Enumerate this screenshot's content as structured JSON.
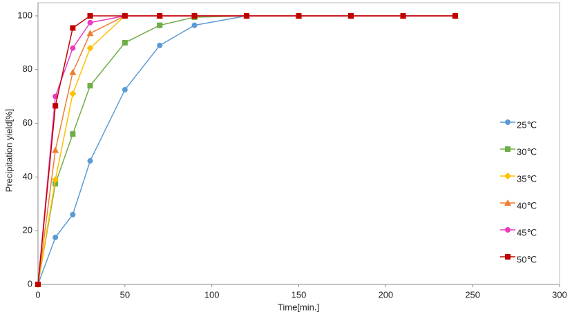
{
  "chart_data": {
    "type": "line",
    "xlabel": "Time[min.]",
    "ylabel": "Precipitation yield[%]",
    "x": [
      0,
      10,
      20,
      30,
      50,
      70,
      90,
      120,
      150,
      180,
      210,
      240
    ],
    "series": [
      {
        "name": "25℃",
        "color": "#5b9bd5",
        "marker": "circle",
        "values": [
          0,
          17.5,
          26,
          46,
          72.5,
          89,
          96.5,
          100,
          100,
          100,
          100,
          100
        ]
      },
      {
        "name": "30℃",
        "color": "#70ad47",
        "marker": "square",
        "values": [
          0,
          37.5,
          56,
          74,
          90,
          96.5,
          99.5,
          100,
          100,
          100,
          100,
          100
        ]
      },
      {
        "name": "35℃",
        "color": "#ffc000",
        "marker": "diamond",
        "values": [
          0,
          39,
          71,
          88,
          100,
          100,
          100,
          100,
          100,
          100,
          100,
          100
        ]
      },
      {
        "name": "40℃",
        "color": "#ed7d31",
        "marker": "triangle",
        "values": [
          0,
          50,
          79,
          93.5,
          100,
          100,
          100,
          100,
          100,
          100,
          100,
          100
        ]
      },
      {
        "name": "45℃",
        "color": "#e83cbf",
        "marker": "circle",
        "values": [
          0,
          70,
          88,
          97.5,
          100,
          100,
          100,
          100,
          100,
          100,
          100,
          100
        ]
      },
      {
        "name": "50℃",
        "color": "#c00000",
        "marker": "square",
        "values": [
          0,
          66.5,
          95.5,
          100,
          100,
          100,
          100,
          100,
          100,
          100,
          100,
          100
        ]
      }
    ],
    "xlim": [
      0,
      300
    ],
    "xticks": [
      0,
      50,
      100,
      150,
      200,
      250,
      300
    ],
    "ylim": [
      0,
      100
    ],
    "yticks": [
      0,
      20,
      40,
      60,
      80,
      100
    ],
    "grid": false,
    "legend": "right"
  }
}
